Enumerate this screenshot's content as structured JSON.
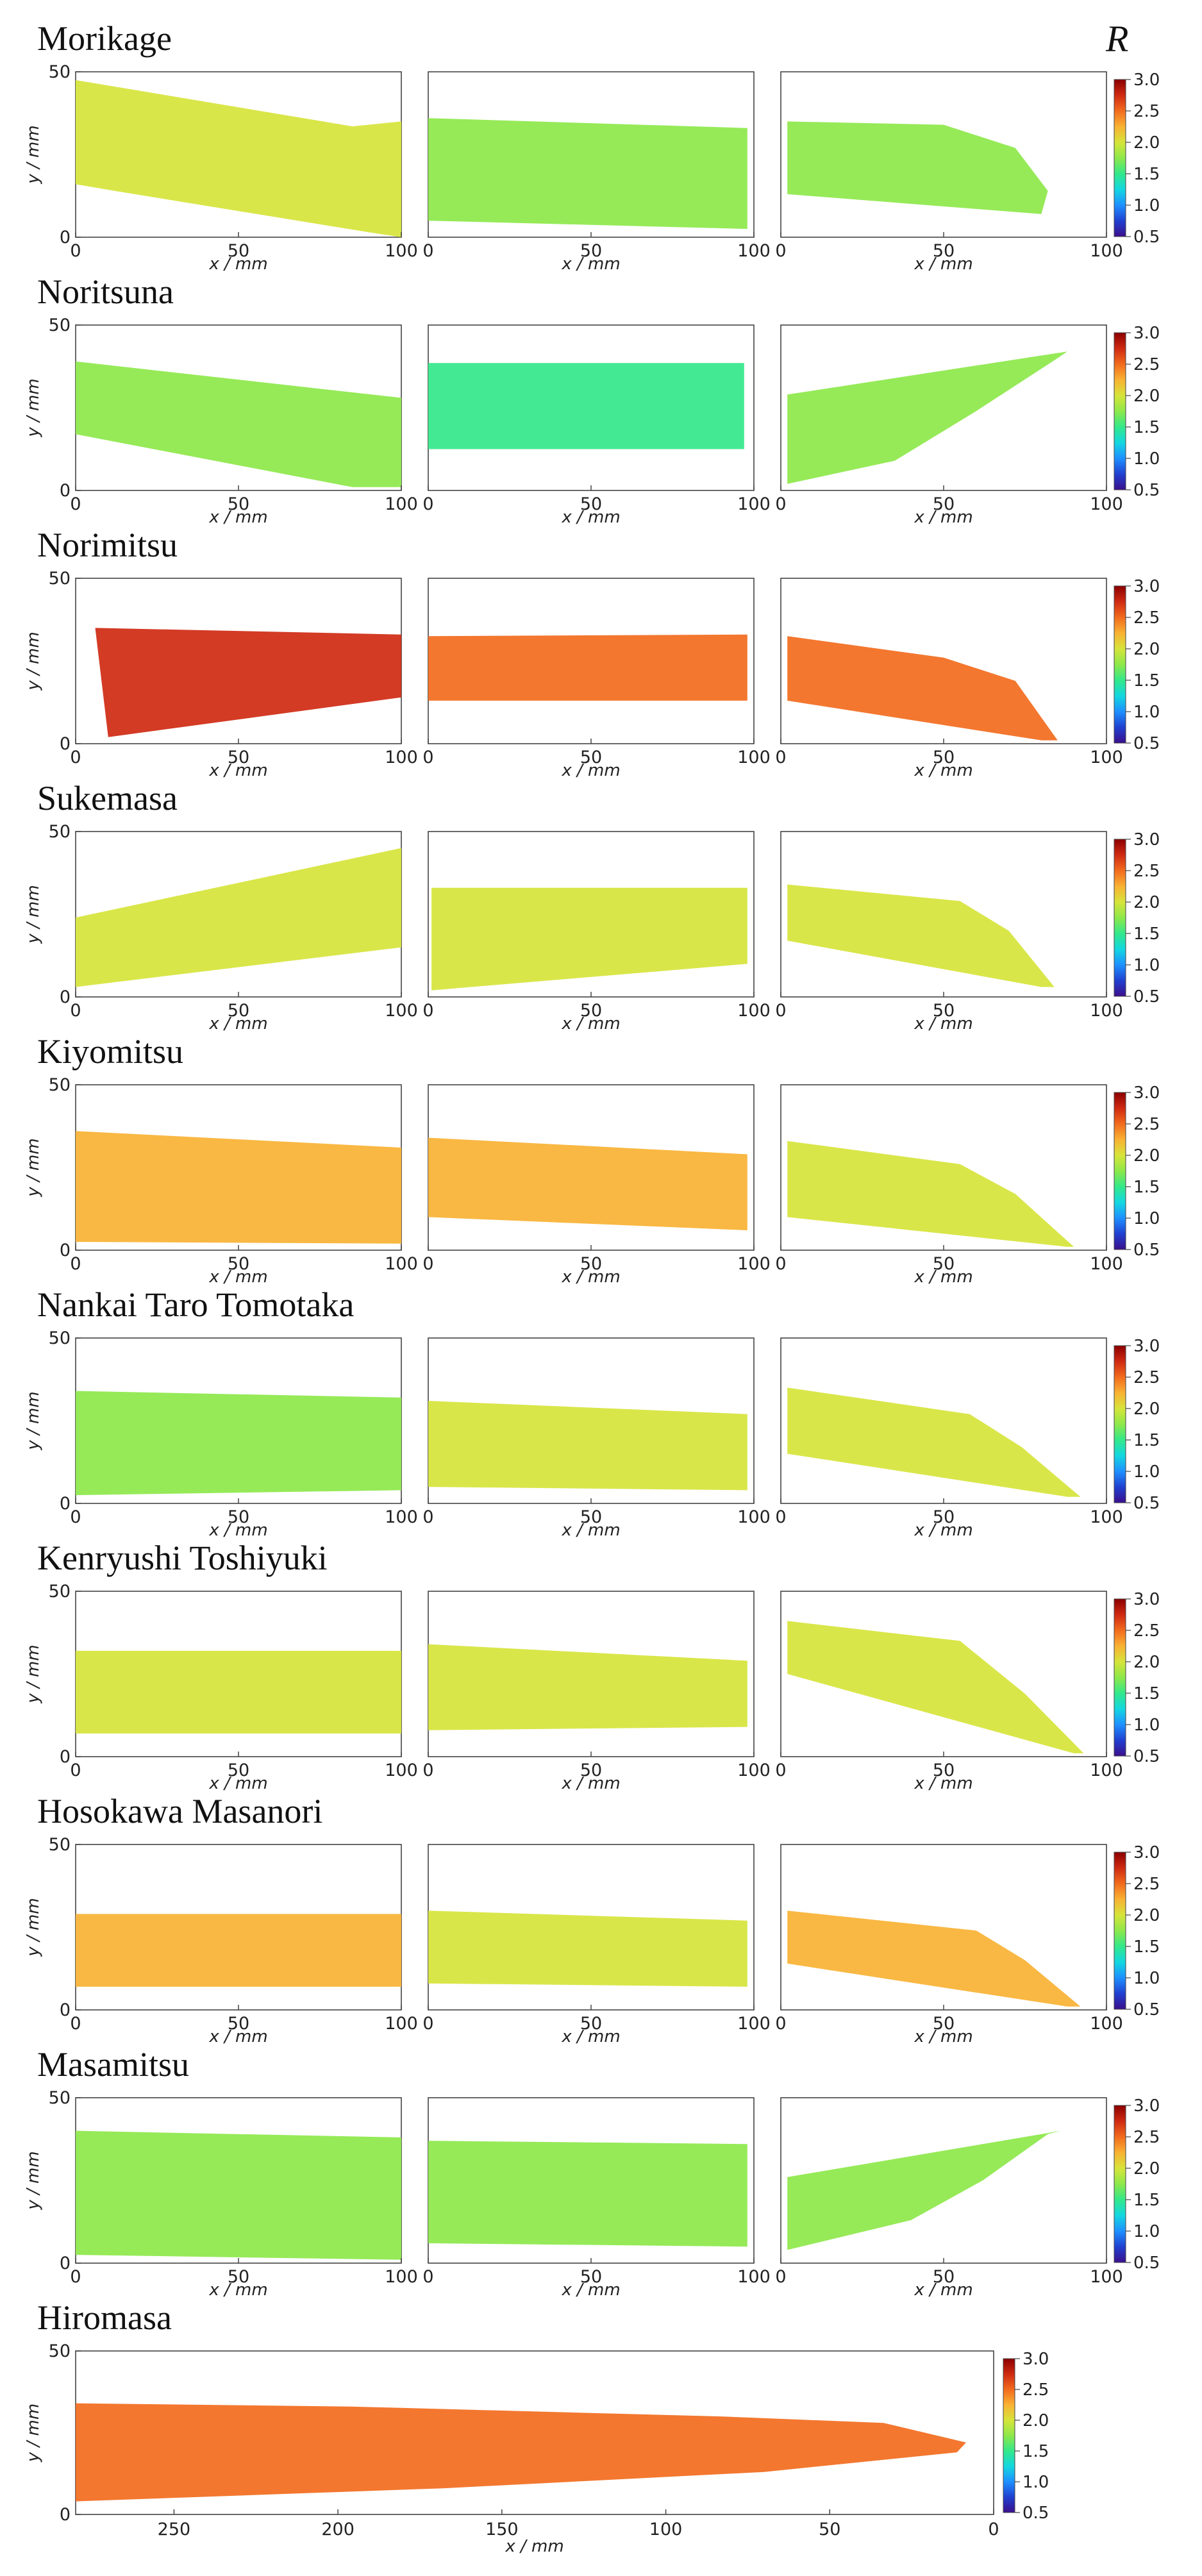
{
  "chart_data": {
    "type": "heatmap",
    "colorbar": {
      "label": "R",
      "min": 0.5,
      "max": 3.0,
      "ticks": [
        "3.0",
        "2.5",
        "2.0",
        "1.5",
        "1.0",
        "0.5"
      ],
      "colormap": [
        "#3b0f8c",
        "#2040d0",
        "#1e90ff",
        "#13d7e0",
        "#33e88a",
        "#8de84a",
        "#d6e43a",
        "#f9b233",
        "#f26b1d",
        "#cf2a12",
        "#8b0000"
      ]
    },
    "panels_per_sword": 3,
    "x_ticks": [
      "0",
      "50",
      "100"
    ],
    "y_ticks": [
      "0",
      "50"
    ],
    "xlabel": "x / mm",
    "ylabel": "y / mm",
    "xlim": [
      0,
      100
    ],
    "ylim": [
      0,
      50
    ],
    "swords": [
      {
        "name": "Morikage",
        "mean": [
          1.9,
          1.7,
          1.7
        ]
      },
      {
        "name": "Noritsuna",
        "mean": [
          1.7,
          1.6,
          1.7
        ]
      },
      {
        "name": "Norimitsu",
        "mean": [
          2.7,
          2.6,
          2.5
        ]
      },
      {
        "name": "Sukemasa",
        "mean": [
          2.1,
          1.9,
          2.0
        ]
      },
      {
        "name": "Kiyomitsu",
        "mean": [
          2.2,
          2.2,
          2.0
        ]
      },
      {
        "name": "Nankai Taro Tomotaka",
        "mean": [
          1.8,
          1.9,
          1.9
        ]
      },
      {
        "name": "Kenryushi Toshiyuki",
        "mean": [
          2.0,
          1.9,
          1.9
        ]
      },
      {
        "name": "Hosokawa Masanori",
        "mean": [
          2.2,
          2.1,
          2.3
        ]
      },
      {
        "name": "Masamitsu",
        "mean": [
          1.8,
          1.8,
          1.8
        ]
      }
    ],
    "hiromasa": {
      "name": "Hiromasa",
      "x_ticks": [
        "250",
        "200",
        "150",
        "100",
        "50",
        "0"
      ],
      "xlim": [
        280,
        0
      ],
      "y_ticks": [
        "0",
        "50"
      ],
      "mean": 2.5
    }
  }
}
